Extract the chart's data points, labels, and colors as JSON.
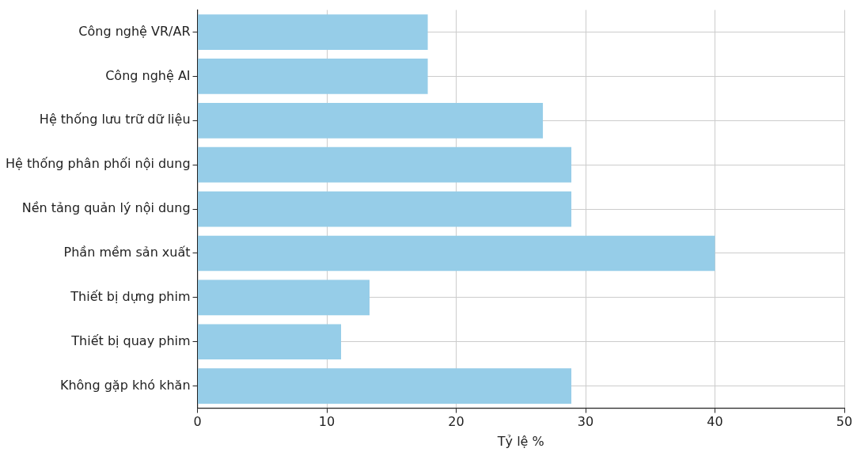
{
  "chart_data": {
    "type": "bar",
    "orientation": "horizontal",
    "xlabel": "Tỷ lệ %",
    "categories": [
      "Công nghệ VR/AR",
      "Công nghệ AI",
      "Hệ thống lưu trữ dữ liệu",
      "Hệ thống phân phối nội dung",
      "Nền tảng quản lý nội dung",
      "Phần mềm sản xuất",
      "Thiết bị dựng phim",
      "Thiết bị quay phim",
      "Không gặp khó khăn"
    ],
    "values": [
      17.8,
      17.8,
      26.7,
      28.9,
      28.9,
      40.0,
      13.3,
      11.1,
      28.9
    ],
    "color": "#96cde8",
    "xlim": [
      0,
      50
    ],
    "xticks": [
      0,
      10,
      20,
      30,
      40,
      50
    ],
    "grid": true
  }
}
